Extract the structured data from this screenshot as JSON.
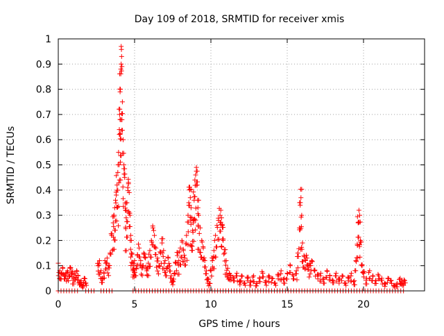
{
  "chart_data": {
    "type": "scatter",
    "title": "Day 109 of 2018, SRMTID for receiver xmis",
    "xlabel": "GPS time / hours",
    "ylabel": "SRMTID / TECUs",
    "xlim": [
      0,
      24
    ],
    "ylim": [
      0,
      1
    ],
    "xticks": [
      0,
      5,
      10,
      15,
      20
    ],
    "yticks": [
      0,
      0.1,
      0.2,
      0.3,
      0.4,
      0.5,
      0.6,
      0.7,
      0.8,
      0.9,
      1
    ],
    "xtick_labels": [
      "0",
      "5",
      "10",
      "15",
      "20"
    ],
    "ytick_labels": [
      "0",
      "0.1",
      "0.2",
      "0.3",
      "0.4",
      "0.5",
      "0.6",
      "0.7",
      "0.8",
      "0.9",
      "1"
    ],
    "grid": true,
    "marker": "plus",
    "color": "#ff0000",
    "series": [
      {
        "name": "SRMTID",
        "points": [
          [
            0.0,
            0.11
          ],
          [
            0.1,
            0.08
          ],
          [
            0.2,
            0.07
          ],
          [
            0.3,
            0.09
          ],
          [
            0.4,
            0.06
          ],
          [
            0.5,
            0.07
          ],
          [
            0.6,
            0.08
          ],
          [
            0.7,
            0.06
          ],
          [
            0.8,
            0.09
          ],
          [
            0.9,
            0.07
          ],
          [
            1.0,
            0.05
          ],
          [
            1.1,
            0.07
          ],
          [
            1.2,
            0.08
          ],
          [
            1.3,
            0.06
          ],
          [
            1.4,
            0.03
          ],
          [
            1.5,
            0.04
          ],
          [
            1.6,
            0.02
          ],
          [
            1.7,
            0.05
          ],
          [
            1.8,
            0.03
          ],
          [
            2.6,
            0.1
          ],
          [
            2.7,
            0.12
          ],
          [
            2.8,
            0.08
          ],
          [
            2.9,
            0.05
          ],
          [
            3.0,
            0.07
          ],
          [
            3.1,
            0.11
          ],
          [
            3.2,
            0.13
          ],
          [
            3.3,
            0.1
          ],
          [
            3.4,
            0.15
          ],
          [
            3.5,
            0.22
          ],
          [
            3.6,
            0.27
          ],
          [
            3.65,
            0.3
          ],
          [
            3.7,
            0.33
          ],
          [
            3.75,
            0.36
          ],
          [
            3.8,
            0.38
          ],
          [
            3.85,
            0.42
          ],
          [
            3.9,
            0.47
          ],
          [
            3.95,
            0.55
          ],
          [
            4.0,
            0.64
          ],
          [
            4.02,
            0.7
          ],
          [
            4.05,
            0.79
          ],
          [
            4.07,
            0.8
          ],
          [
            4.1,
            0.88
          ],
          [
            4.12,
            0.9
          ],
          [
            4.15,
            0.93
          ],
          [
            4.17,
            0.89
          ],
          [
            4.2,
            0.75
          ],
          [
            4.25,
            0.6
          ],
          [
            4.3,
            0.5
          ],
          [
            4.35,
            0.45
          ],
          [
            4.4,
            0.32
          ],
          [
            4.45,
            0.29
          ],
          [
            4.5,
            0.35
          ],
          [
            4.55,
            0.41
          ],
          [
            4.6,
            0.43
          ],
          [
            4.65,
            0.39
          ],
          [
            4.7,
            0.3
          ],
          [
            4.75,
            0.22
          ],
          [
            4.8,
            0.15
          ],
          [
            4.85,
            0.11
          ],
          [
            4.9,
            0.08
          ],
          [
            4.95,
            0.1
          ],
          [
            5.0,
            0.12
          ],
          [
            5.1,
            0.09
          ],
          [
            5.2,
            0.14
          ],
          [
            5.3,
            0.17
          ],
          [
            5.4,
            0.12
          ],
          [
            5.5,
            0.1
          ],
          [
            5.6,
            0.15
          ],
          [
            5.7,
            0.13
          ],
          [
            5.8,
            0.08
          ],
          [
            5.9,
            0.11
          ],
          [
            6.0,
            0.16
          ],
          [
            6.1,
            0.2
          ],
          [
            6.2,
            0.25
          ],
          [
            6.3,
            0.22
          ],
          [
            6.4,
            0.17
          ],
          [
            6.5,
            0.13
          ],
          [
            6.6,
            0.1
          ],
          [
            6.7,
            0.15
          ],
          [
            6.8,
            0.19
          ],
          [
            6.9,
            0.16
          ],
          [
            7.0,
            0.12
          ],
          [
            7.1,
            0.09
          ],
          [
            7.2,
            0.13
          ],
          [
            7.3,
            0.1
          ],
          [
            7.4,
            0.06
          ],
          [
            7.5,
            0.04
          ],
          [
            7.6,
            0.07
          ],
          [
            7.7,
            0.11
          ],
          [
            7.8,
            0.14
          ],
          [
            7.9,
            0.12
          ],
          [
            8.0,
            0.17
          ],
          [
            8.1,
            0.2
          ],
          [
            8.2,
            0.16
          ],
          [
            8.3,
            0.13
          ],
          [
            8.4,
            0.22
          ],
          [
            8.5,
            0.3
          ],
          [
            8.55,
            0.35
          ],
          [
            8.6,
            0.4
          ],
          [
            8.65,
            0.37
          ],
          [
            8.7,
            0.33
          ],
          [
            8.75,
            0.29
          ],
          [
            8.8,
            0.24
          ],
          [
            8.85,
            0.27
          ],
          [
            8.9,
            0.36
          ],
          [
            8.95,
            0.44
          ],
          [
            9.0,
            0.46
          ],
          [
            9.05,
            0.49
          ],
          [
            9.1,
            0.42
          ],
          [
            9.15,
            0.33
          ],
          [
            9.2,
            0.3
          ],
          [
            9.3,
            0.25
          ],
          [
            9.4,
            0.2
          ],
          [
            9.5,
            0.17
          ],
          [
            9.6,
            0.12
          ],
          [
            9.7,
            0.08
          ],
          [
            9.8,
            0.05
          ],
          [
            9.9,
            0.03
          ],
          [
            10.0,
            0.08
          ],
          [
            10.1,
            0.12
          ],
          [
            10.2,
            0.16
          ],
          [
            10.3,
            0.22
          ],
          [
            10.4,
            0.26
          ],
          [
            10.5,
            0.28
          ],
          [
            10.6,
            0.3
          ],
          [
            10.65,
            0.32
          ],
          [
            10.7,
            0.29
          ],
          [
            10.75,
            0.26
          ],
          [
            10.8,
            0.2
          ],
          [
            10.9,
            0.15
          ],
          [
            11.0,
            0.12
          ],
          [
            11.1,
            0.09
          ],
          [
            11.2,
            0.07
          ],
          [
            11.3,
            0.06
          ],
          [
            11.5,
            0.05
          ],
          [
            11.7,
            0.07
          ],
          [
            11.9,
            0.04
          ],
          [
            12.0,
            0.06
          ],
          [
            12.2,
            0.03
          ],
          [
            12.4,
            0.05
          ],
          [
            12.6,
            0.04
          ],
          [
            12.8,
            0.06
          ],
          [
            13.0,
            0.03
          ],
          [
            13.2,
            0.05
          ],
          [
            13.4,
            0.07
          ],
          [
            13.6,
            0.04
          ],
          [
            13.8,
            0.06
          ],
          [
            14.0,
            0.05
          ],
          [
            14.2,
            0.03
          ],
          [
            14.4,
            0.06
          ],
          [
            14.6,
            0.08
          ],
          [
            14.8,
            0.05
          ],
          [
            15.0,
            0.07
          ],
          [
            15.2,
            0.1
          ],
          [
            15.4,
            0.06
          ],
          [
            15.6,
            0.08
          ],
          [
            15.7,
            0.15
          ],
          [
            15.8,
            0.25
          ],
          [
            15.85,
            0.34
          ],
          [
            15.9,
            0.37
          ],
          [
            15.95,
            0.3
          ],
          [
            16.0,
            0.19
          ],
          [
            16.1,
            0.14
          ],
          [
            16.2,
            0.12
          ],
          [
            16.3,
            0.13
          ],
          [
            16.4,
            0.1
          ],
          [
            16.5,
            0.11
          ],
          [
            16.6,
            0.12
          ],
          [
            16.8,
            0.08
          ],
          [
            17.0,
            0.06
          ],
          [
            17.2,
            0.07
          ],
          [
            17.4,
            0.05
          ],
          [
            17.6,
            0.08
          ],
          [
            17.8,
            0.06
          ],
          [
            18.0,
            0.04
          ],
          [
            18.2,
            0.07
          ],
          [
            18.4,
            0.05
          ],
          [
            18.6,
            0.06
          ],
          [
            18.8,
            0.03
          ],
          [
            19.0,
            0.05
          ],
          [
            19.2,
            0.07
          ],
          [
            19.4,
            0.04
          ],
          [
            19.5,
            0.12
          ],
          [
            19.6,
            0.18
          ],
          [
            19.65,
            0.27
          ],
          [
            19.7,
            0.32
          ],
          [
            19.75,
            0.3
          ],
          [
            19.8,
            0.2
          ],
          [
            19.9,
            0.1
          ],
          [
            20.0,
            0.07
          ],
          [
            20.2,
            0.05
          ],
          [
            20.4,
            0.08
          ],
          [
            20.6,
            0.06
          ],
          [
            20.8,
            0.04
          ],
          [
            21.0,
            0.06
          ],
          [
            21.2,
            0.05
          ],
          [
            21.4,
            0.03
          ],
          [
            21.6,
            0.05
          ],
          [
            21.8,
            0.04
          ],
          [
            22.0,
            0.02
          ],
          [
            22.2,
            0.03
          ],
          [
            22.4,
            0.05
          ],
          [
            22.5,
            0.04
          ],
          [
            22.6,
            0.03
          ],
          [
            22.7,
            0.04
          ]
        ],
        "zero_runs": [
          [
            0.0,
            1.4
          ],
          [
            1.8,
            2.5
          ],
          [
            2.8,
            3.6
          ],
          [
            4.9,
            9.9
          ],
          [
            9.9,
            12.0
          ],
          [
            12.0,
            22.7
          ]
        ]
      }
    ]
  }
}
